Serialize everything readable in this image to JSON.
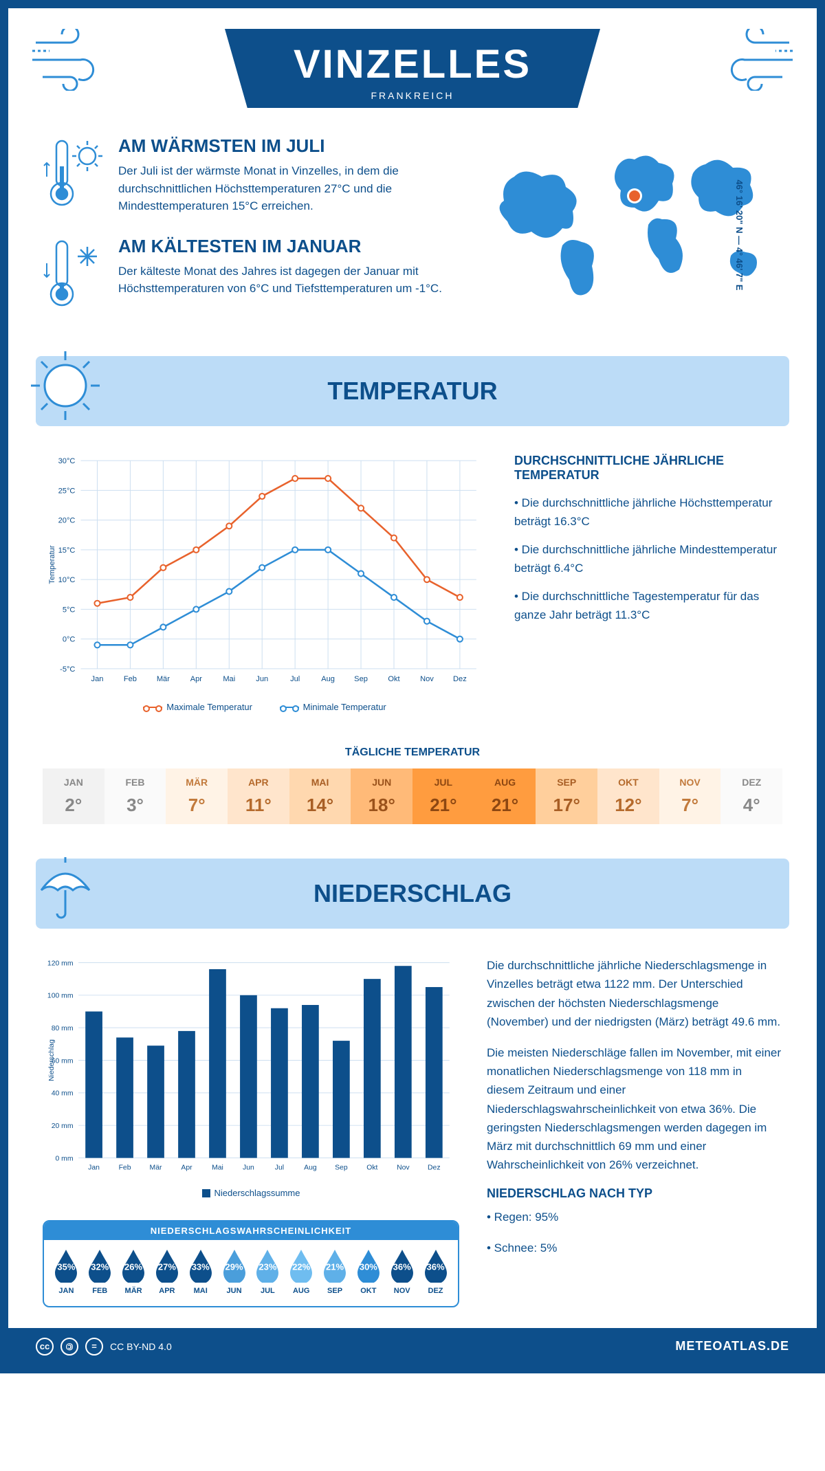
{
  "header": {
    "title": "VINZELLES",
    "subtitle": "FRANKREICH"
  },
  "coords": "46° 16' 20\" N — 4° 46' 7\" E",
  "intro": {
    "warm": {
      "title": "AM WÄRMSTEN IM JULI",
      "text": "Der Juli ist der wärmste Monat in Vinzelles, in dem die durchschnittlichen Höchsttemperaturen 27°C und die Mindesttemperaturen 15°C erreichen."
    },
    "cold": {
      "title": "AM KÄLTESTEN IM JANUAR",
      "text": "Der kälteste Monat des Jahres ist dagegen der Januar mit Höchsttemperaturen von 6°C und Tiefsttemperaturen um -1°C."
    }
  },
  "temperature": {
    "banner": "TEMPERATUR",
    "chart": {
      "months": [
        "Jan",
        "Feb",
        "Mär",
        "Apr",
        "Mai",
        "Jun",
        "Jul",
        "Aug",
        "Sep",
        "Okt",
        "Nov",
        "Dez"
      ],
      "max_values": [
        6,
        7,
        12,
        15,
        19,
        24,
        27,
        27,
        22,
        17,
        10,
        7
      ],
      "min_values": [
        -1,
        -1,
        2,
        5,
        8,
        12,
        15,
        15,
        11,
        7,
        3,
        0
      ],
      "max_color": "#e8622c",
      "min_color": "#2e8dd6",
      "grid_color": "#cddff0",
      "ymin": -5,
      "ymax": 30,
      "ytick_step": 5,
      "ylabel": "Temperatur"
    },
    "legend_max": "Maximale Temperatur",
    "legend_min": "Minimale Temperatur",
    "summary": {
      "title": "DURCHSCHNITTLICHE JÄHRLICHE TEMPERATUR",
      "line1": "• Die durchschnittliche jährliche Höchsttemperatur beträgt 16.3°C",
      "line2": "• Die durchschnittliche jährliche Mindesttemperatur beträgt 6.4°C",
      "line3": "• Die durchschnittliche Tagestemperatur für das ganze Jahr beträgt 11.3°C"
    },
    "daily": {
      "title": "TÄGLICHE TEMPERATUR",
      "months": [
        "JAN",
        "FEB",
        "MÄR",
        "APR",
        "MAI",
        "JUN",
        "JUL",
        "AUG",
        "SEP",
        "OKT",
        "NOV",
        "DEZ"
      ],
      "values": [
        "2°",
        "3°",
        "7°",
        "11°",
        "14°",
        "18°",
        "21°",
        "21°",
        "17°",
        "12°",
        "7°",
        "4°"
      ],
      "bg_colors": [
        "#f2f2f2",
        "#fafafa",
        "#fff3e6",
        "#ffe5cc",
        "#ffd8af",
        "#ffba78",
        "#ff9c3f",
        "#ff9c3f",
        "#ffcf9c",
        "#ffe5cc",
        "#fff3e6",
        "#fafafa"
      ],
      "text_colors": [
        "#888",
        "#888",
        "#c27a3c",
        "#b56a2c",
        "#a85e24",
        "#9a521b",
        "#8d4712",
        "#8d4712",
        "#a85e24",
        "#b56a2c",
        "#c27a3c",
        "#888"
      ]
    }
  },
  "precip": {
    "banner": "NIEDERSCHLAG",
    "chart": {
      "months": [
        "Jan",
        "Feb",
        "Mär",
        "Apr",
        "Mai",
        "Jun",
        "Jul",
        "Aug",
        "Sep",
        "Okt",
        "Nov",
        "Dez"
      ],
      "values": [
        90,
        74,
        69,
        78,
        116,
        100,
        92,
        94,
        72,
        110,
        118,
        105
      ],
      "bar_color": "#0d4f8b",
      "grid_color": "#cddff0",
      "ymax": 120,
      "ytick_step": 20,
      "ylabel": "Niederschlag",
      "legend": "Niederschlagssumme"
    },
    "text1": "Die durchschnittliche jährliche Niederschlagsmenge in Vinzelles beträgt etwa 1122 mm. Der Unterschied zwischen der höchsten Niederschlagsmenge (November) und der niedrigsten (März) beträgt 49.6 mm.",
    "text2": "Die meisten Niederschläge fallen im November, mit einer monatlichen Niederschlagsmenge von 118 mm in diesem Zeitraum und einer Niederschlagswahrscheinlichkeit von etwa 36%. Die geringsten Niederschlagsmengen werden dagegen im März mit durchschnittlich 69 mm und einer Wahrscheinlichkeit von 26% verzeichnet.",
    "type_title": "NIEDERSCHLAG NACH TYP",
    "type1": "• Regen: 95%",
    "type2": "• Schnee: 5%",
    "prob": {
      "title": "NIEDERSCHLAGSWAHRSCHEINLICHKEIT",
      "months": [
        "JAN",
        "FEB",
        "MÄR",
        "APR",
        "MAI",
        "JUN",
        "JUL",
        "AUG",
        "SEP",
        "OKT",
        "NOV",
        "DEZ"
      ],
      "values": [
        "35%",
        "32%",
        "26%",
        "27%",
        "33%",
        "29%",
        "23%",
        "22%",
        "21%",
        "30%",
        "36%",
        "36%"
      ],
      "colors": [
        "#0d4f8b",
        "#0d4f8b",
        "#0d4f8b",
        "#0d4f8b",
        "#0d4f8b",
        "#4a9edb",
        "#5fb0e8",
        "#6fbdf0",
        "#5fb0e8",
        "#2e8dd6",
        "#0d4f8b",
        "#0d4f8b"
      ]
    }
  },
  "footer": {
    "license": "CC BY-ND 4.0",
    "site": "METEOATLAS.DE"
  }
}
